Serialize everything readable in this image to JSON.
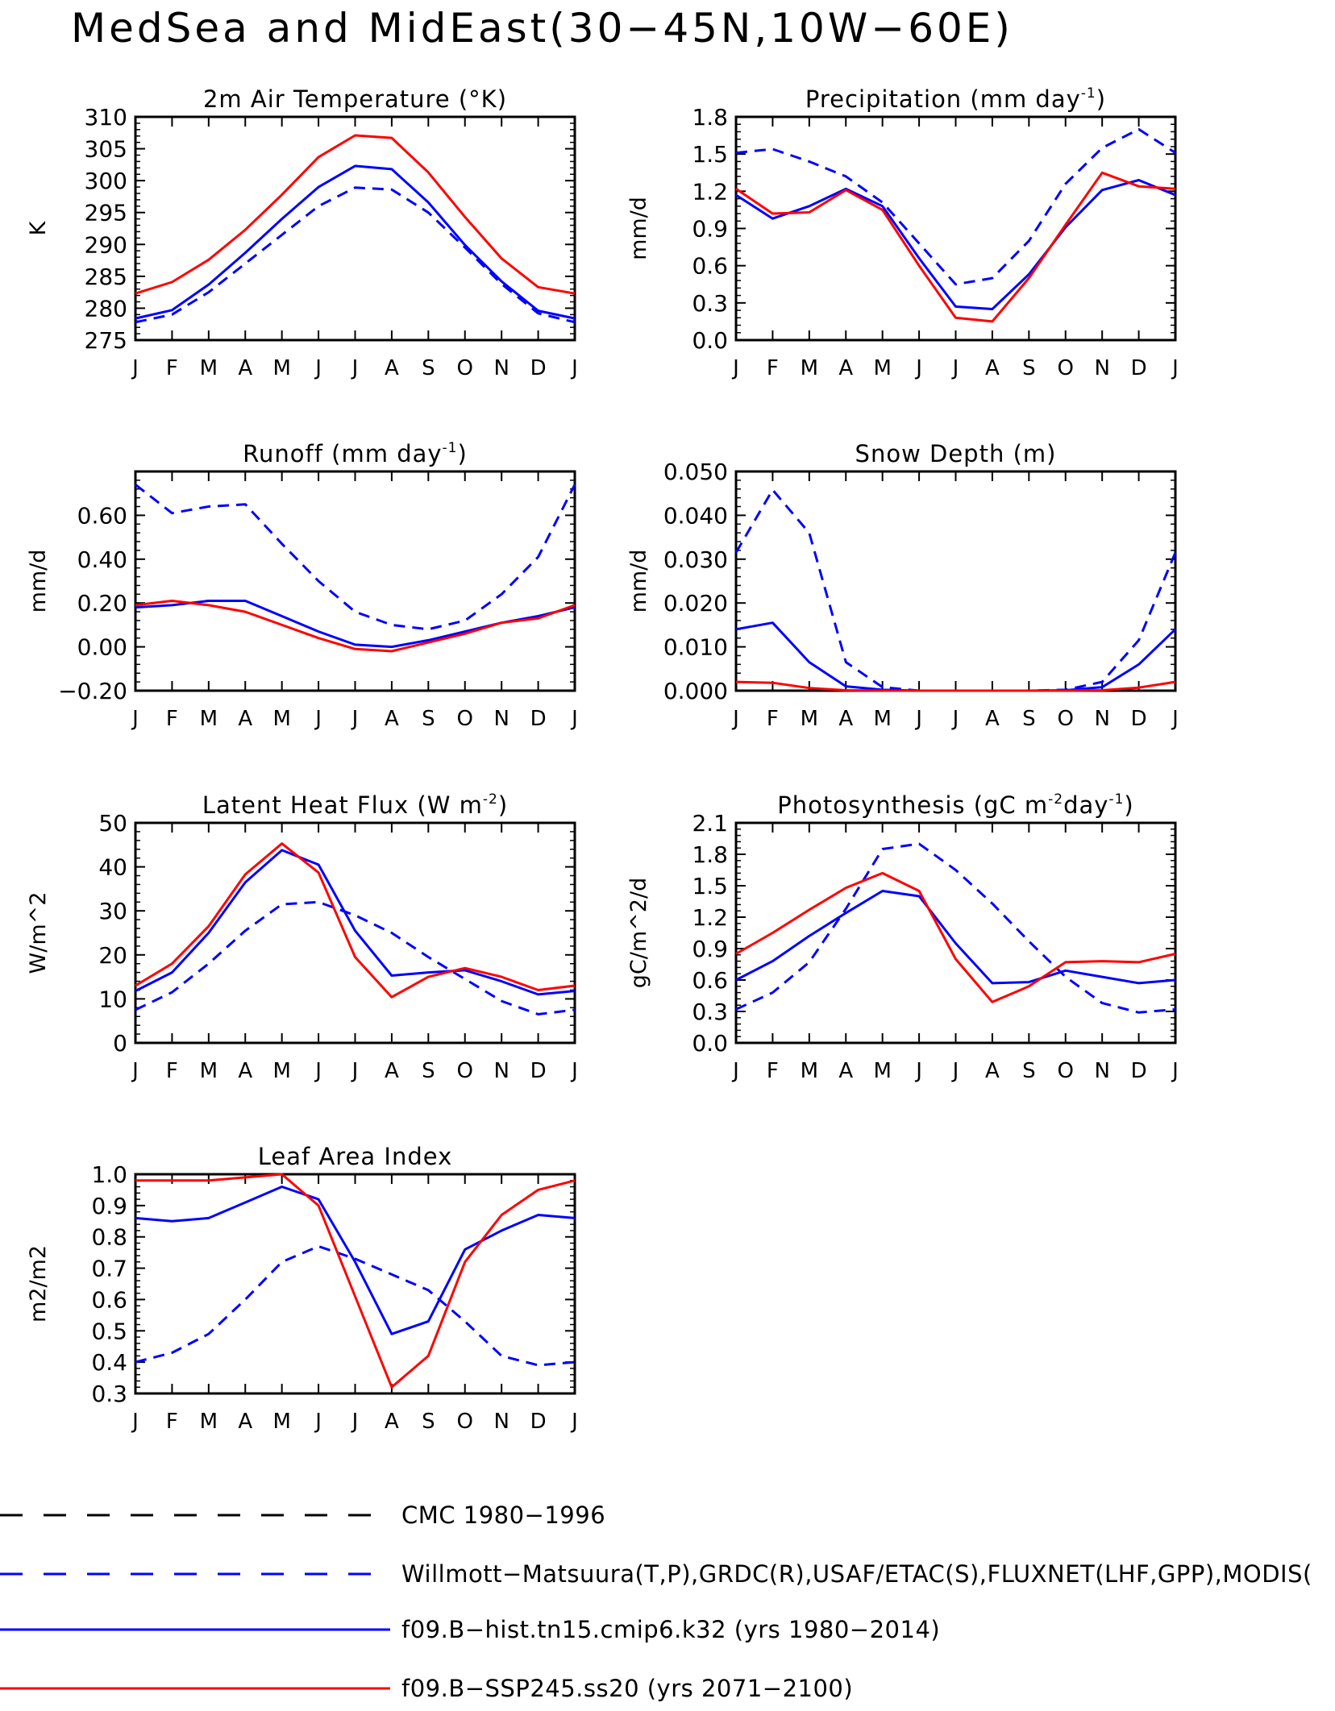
{
  "figure": {
    "title": "MedSea and MidEast(30-45N,10W-60E)"
  },
  "months": [
    "J",
    "F",
    "M",
    "A",
    "M",
    "J",
    "J",
    "A",
    "S",
    "O",
    "N",
    "D",
    "J"
  ],
  "colors": {
    "obs": "#0000ff",
    "hist": "#0000ff",
    "ssp": "#ff0000",
    "cmc": "#000000"
  },
  "legend": [
    {
      "label": "CMC 1980-1996",
      "color": "#000000",
      "style": "dashed-long"
    },
    {
      "label": "Willmott-Matsuura(T,P),GRDC(R),USAF/ETAC(S),FLUXNET(LHF,GPP),MODIS(",
      "color": "#0000ff",
      "style": "dashed-long"
    },
    {
      "label": "f09.B-hist.tn15.cmip6.k32 (yrs 1980-2014)",
      "color": "#0000ff",
      "style": "solid"
    },
    {
      "label": "f09.B-SSP245.ss20 (yrs 2071-2100)",
      "color": "#ff0000",
      "style": "solid"
    }
  ],
  "chart_data": [
    {
      "type": "line",
      "title": "2m Air Temperature (°K)",
      "ylabel": "K",
      "ylim": [
        275,
        310
      ],
      "yticks": [
        "275",
        "280",
        "285",
        "290",
        "295",
        "300",
        "305",
        "310"
      ],
      "x": [
        "J",
        "F",
        "M",
        "A",
        "M",
        "J",
        "J",
        "A",
        "S",
        "O",
        "N",
        "D",
        "J"
      ],
      "series": [
        {
          "name": "Willmott-Matsuura(T,P),GRDC(R),USAF/ETAC(S),FLUXNET(LHF,GPP),MODIS(",
          "style": "dashed",
          "color": "#0000ff",
          "values": [
            277.8,
            279.0,
            282.5,
            287.0,
            291.5,
            296.0,
            298.9,
            298.6,
            295.0,
            289.5,
            283.8,
            279.2,
            277.8
          ]
        },
        {
          "name": "f09.B-hist.tn15.cmip6.k32 (yrs 1980-2014)",
          "style": "solid",
          "color": "#0000ff",
          "values": [
            278.4,
            279.7,
            283.7,
            288.7,
            294.0,
            299.0,
            302.3,
            301.8,
            296.6,
            289.9,
            284.2,
            279.6,
            278.4
          ]
        },
        {
          "name": "f09.B-SSP245.ss20 (yrs 2071-2100)",
          "style": "solid",
          "color": "#ff0000",
          "values": [
            282.3,
            284.1,
            287.6,
            292.3,
            297.8,
            303.7,
            307.1,
            306.7,
            301.3,
            294.3,
            287.8,
            283.3,
            282.3
          ]
        }
      ]
    },
    {
      "type": "line",
      "title": "Precipitation (mm day",
      "title_sup": "-1",
      "title_after": ")",
      "ylabel": "mm/d",
      "ylim": [
        0.0,
        1.8
      ],
      "yticks": [
        "0.0",
        "0.3",
        "0.6",
        "0.9",
        "1.2",
        "1.5",
        "1.8"
      ],
      "x": [
        "J",
        "F",
        "M",
        "A",
        "M",
        "J",
        "J",
        "A",
        "S",
        "O",
        "N",
        "D",
        "J"
      ],
      "series": [
        {
          "name": "Willmott-Matsuura(T,P),GRDC(R),USAF/ETAC(S),FLUXNET(LHF,GPP),MODIS(",
          "style": "dashed",
          "color": "#0000ff",
          "values": [
            1.51,
            1.54,
            1.44,
            1.32,
            1.11,
            0.78,
            0.45,
            0.5,
            0.8,
            1.26,
            1.55,
            1.7,
            1.51
          ]
        },
        {
          "name": "f09.B-hist.tn15.cmip6.k32 (yrs 1980-2014)",
          "style": "solid",
          "color": "#0000ff",
          "values": [
            1.17,
            0.98,
            1.08,
            1.22,
            1.08,
            0.66,
            0.27,
            0.25,
            0.53,
            0.91,
            1.21,
            1.29,
            1.17
          ]
        },
        {
          "name": "f09.B-SSP245.ss20 (yrs 2071-2100)",
          "style": "solid",
          "color": "#ff0000",
          "values": [
            1.22,
            1.02,
            1.03,
            1.21,
            1.05,
            0.6,
            0.18,
            0.15,
            0.5,
            0.93,
            1.35,
            1.24,
            1.22
          ]
        }
      ]
    },
    {
      "type": "line",
      "title": "Runoff (mm day",
      "title_sup": "-1",
      "title_after": ")",
      "ylabel": "mm/d",
      "ylim": [
        -0.2,
        0.8
      ],
      "yticks": [
        "-0.20",
        "0.00",
        "0.20",
        "0.40",
        "0.60"
      ],
      "ytick_values": [
        -0.2,
        0.0,
        0.2,
        0.4,
        0.6
      ],
      "x": [
        "J",
        "F",
        "M",
        "A",
        "M",
        "J",
        "J",
        "A",
        "S",
        "O",
        "N",
        "D",
        "J"
      ],
      "series": [
        {
          "name": "Willmott-Matsuura(T,P),GRDC(R),USAF/ETAC(S),FLUXNET(LHF,GPP),MODIS(",
          "style": "dashed",
          "color": "#0000ff",
          "values": [
            0.74,
            0.61,
            0.64,
            0.65,
            0.47,
            0.3,
            0.16,
            0.1,
            0.08,
            0.12,
            0.24,
            0.41,
            0.74
          ]
        },
        {
          "name": "f09.B-hist.tn15.cmip6.k32 (yrs 1980-2014)",
          "style": "solid",
          "color": "#0000ff",
          "values": [
            0.18,
            0.19,
            0.21,
            0.21,
            0.14,
            0.07,
            0.01,
            0.0,
            0.03,
            0.07,
            0.11,
            0.14,
            0.18
          ]
        },
        {
          "name": "f09.B-SSP245.ss20 (yrs 2071-2100)",
          "style": "solid",
          "color": "#ff0000",
          "values": [
            0.19,
            0.21,
            0.19,
            0.16,
            0.1,
            0.04,
            -0.01,
            -0.02,
            0.02,
            0.06,
            0.11,
            0.13,
            0.19
          ]
        }
      ]
    },
    {
      "type": "line",
      "title": "Snow Depth (m)",
      "ylabel": "mm/d",
      "ylim": [
        0.0,
        0.05
      ],
      "yticks": [
        "0.000",
        "0.010",
        "0.020",
        "0.030",
        "0.040",
        "0.050"
      ],
      "x": [
        "J",
        "F",
        "M",
        "A",
        "M",
        "J",
        "J",
        "A",
        "S",
        "O",
        "N",
        "D",
        "J"
      ],
      "series": [
        {
          "name": "Willmott-Matsuura(T,P),GRDC(R),USAF/ETAC(S),FLUXNET(LHF,GPP),MODIS(",
          "style": "dashed",
          "color": "#0000ff",
          "values": [
            0.0315,
            0.0458,
            0.036,
            0.0065,
            0.0008,
            0.0,
            0.0,
            0.0,
            0.0,
            0.0002,
            0.002,
            0.0115,
            0.0315
          ]
        },
        {
          "name": "f09.B-hist.tn15.cmip6.k32 (yrs 1980-2014)",
          "style": "solid",
          "color": "#0000ff",
          "values": [
            0.014,
            0.0155,
            0.0065,
            0.001,
            0.0002,
            0.0,
            0.0,
            0.0,
            0.0,
            0.0001,
            0.0008,
            0.006,
            0.014
          ]
        },
        {
          "name": "f09.B-SSP245.ss20 (yrs 2071-2100)",
          "style": "solid",
          "color": "#ff0000",
          "values": [
            0.002,
            0.0018,
            0.0006,
            0.0001,
            0.0,
            0.0,
            0.0,
            0.0,
            0.0,
            0.0,
            0.0001,
            0.0007,
            0.002
          ]
        }
      ]
    },
    {
      "type": "line",
      "title": "Latent Heat Flux (W m",
      "title_sup": "-2",
      "title_after": ")",
      "ylabel": "W/m^2",
      "ylim": [
        0,
        50
      ],
      "yticks": [
        "0",
        "10",
        "20",
        "30",
        "40",
        "50"
      ],
      "x": [
        "J",
        "F",
        "M",
        "A",
        "M",
        "J",
        "J",
        "A",
        "S",
        "O",
        "N",
        "D",
        "J"
      ],
      "series": [
        {
          "name": "Willmott-Matsuura(T,P),GRDC(R),USAF/ETAC(S),FLUXNET(LHF,GPP),MODIS(",
          "style": "dashed",
          "color": "#0000ff",
          "values": [
            7.5,
            11.5,
            18.0,
            25.5,
            31.5,
            32.0,
            29.0,
            25.0,
            19.5,
            14.5,
            9.5,
            6.5,
            7.5
          ]
        },
        {
          "name": "f09.B-hist.tn15.cmip6.k32 (yrs 1980-2014)",
          "style": "solid",
          "color": "#0000ff",
          "values": [
            11.8,
            16.0,
            25.0,
            36.5,
            43.8,
            40.5,
            25.5,
            15.3,
            16.0,
            16.5,
            14.0,
            11.0,
            11.8
          ]
        },
        {
          "name": "f09.B-SSP245.ss20 (yrs 2071-2100)",
          "style": "solid",
          "color": "#ff0000",
          "values": [
            13.0,
            18.0,
            26.5,
            38.3,
            45.3,
            38.7,
            19.5,
            10.4,
            15.0,
            17.0,
            15.0,
            12.0,
            13.0
          ]
        }
      ]
    },
    {
      "type": "line",
      "title": "Photosynthesis (gC m",
      "title_sup": "-2",
      "title_mid": "day",
      "title_sup2": "-1",
      "title_after": ")",
      "ylabel": "gC/m^2/d",
      "ylim": [
        0.0,
        2.1
      ],
      "yticks": [
        "0.0",
        "0.3",
        "0.6",
        "0.9",
        "1.2",
        "1.5",
        "1.8",
        "2.1"
      ],
      "x": [
        "J",
        "F",
        "M",
        "A",
        "M",
        "J",
        "J",
        "A",
        "S",
        "O",
        "N",
        "D",
        "J"
      ],
      "series": [
        {
          "name": "Willmott-Matsuura(T,P),GRDC(R),USAF/ETAC(S),FLUXNET(LHF,GPP),MODIS(",
          "style": "dashed",
          "color": "#0000ff",
          "values": [
            0.32,
            0.48,
            0.77,
            1.28,
            1.85,
            1.9,
            1.65,
            1.33,
            0.97,
            0.63,
            0.38,
            0.29,
            0.32
          ]
        },
        {
          "name": "f09.B-hist.tn15.cmip6.k32 (yrs 1980-2014)",
          "style": "solid",
          "color": "#0000ff",
          "values": [
            0.6,
            0.78,
            1.02,
            1.24,
            1.45,
            1.4,
            0.95,
            0.57,
            0.58,
            0.69,
            0.63,
            0.57,
            0.6
          ]
        },
        {
          "name": "f09.B-SSP245.ss20 (yrs 2071-2100)",
          "style": "solid",
          "color": "#ff0000",
          "values": [
            0.85,
            1.05,
            1.27,
            1.48,
            1.62,
            1.45,
            0.8,
            0.39,
            0.54,
            0.77,
            0.78,
            0.77,
            0.85
          ]
        }
      ]
    },
    {
      "type": "line",
      "title": "Leaf Area Index",
      "ylabel": "m2/m2",
      "ylim": [
        0.3,
        1.0
      ],
      "yticks": [
        "0.3",
        "0.4",
        "0.5",
        "0.6",
        "0.7",
        "0.8",
        "0.9",
        "1.0"
      ],
      "x": [
        "J",
        "F",
        "M",
        "A",
        "M",
        "J",
        "J",
        "A",
        "S",
        "O",
        "N",
        "D",
        "J"
      ],
      "series": [
        {
          "name": "Willmott-Matsuura(T,P),GRDC(R),USAF/ETAC(S),FLUXNET(LHF,GPP),MODIS(",
          "style": "dashed",
          "color": "#0000ff",
          "values": [
            0.4,
            0.43,
            0.49,
            0.6,
            0.72,
            0.77,
            0.73,
            0.68,
            0.63,
            0.53,
            0.42,
            0.39,
            0.4
          ]
        },
        {
          "name": "f09.B-hist.tn15.cmip6.k32 (yrs 1980-2014)",
          "style": "solid",
          "color": "#0000ff",
          "values": [
            0.86,
            0.85,
            0.86,
            0.91,
            0.96,
            0.92,
            0.72,
            0.49,
            0.53,
            0.76,
            0.82,
            0.87,
            0.86
          ]
        },
        {
          "name": "f09.B-SSP245.ss20 (yrs 2071-2100)",
          "style": "solid",
          "color": "#ff0000",
          "values": [
            0.98,
            0.98,
            0.98,
            0.99,
            1.0,
            0.9,
            0.61,
            0.32,
            0.42,
            0.72,
            0.87,
            0.95,
            0.98
          ]
        }
      ]
    }
  ]
}
